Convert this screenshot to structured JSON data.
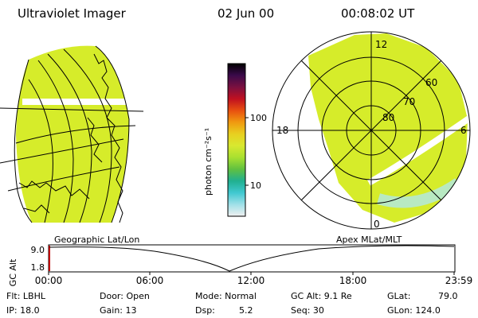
{
  "header": {
    "title": "Ultraviolet Imager",
    "date": "02 Jun 00",
    "time": "00:08:02 UT"
  },
  "colorbar": {
    "label": "photon cm⁻²s⁻¹",
    "ticks": [
      "100",
      "10"
    ],
    "stops": [
      "#000000",
      "#3a0a4a",
      "#7a1040",
      "#c01020",
      "#e85010",
      "#f09a10",
      "#e8d020",
      "#d8e830",
      "#a8e030",
      "#60c040",
      "#20b090",
      "#40c8d0",
      "#a0e0e8",
      "#f0f0f0"
    ]
  },
  "left_map": {
    "fill_color": "#d6ec2a",
    "band_color": "#ffffff"
  },
  "polar_map": {
    "fill_color": "#d6ec2a",
    "hour_labels": {
      "top": "12",
      "left": "18",
      "right": "6",
      "bottom": "0"
    },
    "lat_labels": [
      "80",
      "70",
      "60"
    ]
  },
  "timeline": {
    "left_label": "Geographic Lat/Lon",
    "right_label": "Apex MLat/MLT",
    "axis_title": "GC Alt",
    "y_ticks": [
      "9.0",
      "1.8"
    ],
    "x_ticks": [
      "00:00",
      "06:00",
      "12:00",
      "18:00",
      "23:59"
    ],
    "marker_color": "#c00000"
  },
  "info": {
    "filter": "Flt: LBHL",
    "ip": "IP: 18.0",
    "door": "Door: Open",
    "gain": "Gain: 13",
    "mode": "Mode: Normal",
    "dsp": "Dsp:",
    "dsp_val": "5.2",
    "gcalt": "GC Alt: 9.1 Re",
    "seq": "Seq: 30",
    "glat": "GLat:",
    "glat_val": "79.0",
    "glon": "GLon: 124.0"
  }
}
